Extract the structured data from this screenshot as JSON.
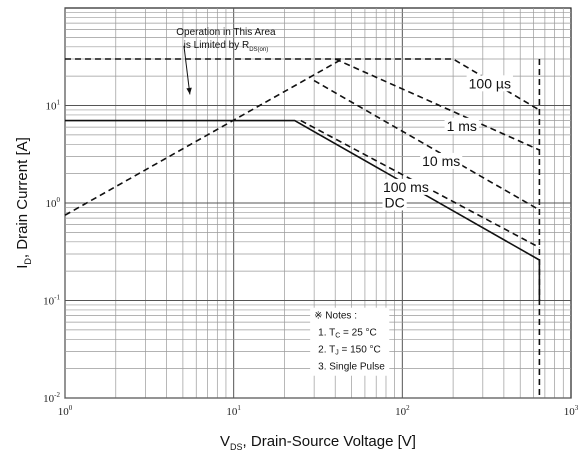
{
  "chart_data": {
    "type": "line",
    "x_scale": "log",
    "y_scale": "log",
    "xlim": [
      1,
      1000
    ],
    "ylim": [
      0.01,
      100
    ],
    "grid": true,
    "x_ticks": [
      {
        "value": 1,
        "base": "10",
        "exp": "0"
      },
      {
        "value": 10,
        "base": "10",
        "exp": "1"
      },
      {
        "value": 100,
        "base": "10",
        "exp": "2"
      },
      {
        "value": 1000,
        "base": "10",
        "exp": "3"
      }
    ],
    "y_ticks": [
      {
        "value": 0.01,
        "base": "10",
        "exp": "-2"
      },
      {
        "value": 0.1,
        "base": "10",
        "exp": "-1"
      },
      {
        "value": 1,
        "base": "10",
        "exp": "0"
      },
      {
        "value": 10,
        "base": "10",
        "exp": "1"
      }
    ],
    "xlabel": {
      "main": "V",
      "sub": "DS",
      "rest": ", Drain-Source Voltage [V]"
    },
    "ylabel": {
      "main": "I",
      "sub": "D",
      "rest": ", Drain Current [A]"
    },
    "series": [
      {
        "name": "100 µs",
        "dashed": true,
        "points": [
          [
            1,
            30
          ],
          [
            200,
            30
          ],
          [
            650,
            9
          ]
        ]
      },
      {
        "name": "1 ms",
        "dashed": true,
        "points": [
          [
            40,
            30
          ],
          [
            650,
            3.5
          ]
        ]
      },
      {
        "name": "10 ms",
        "dashed": true,
        "points": [
          [
            30,
            18
          ],
          [
            650,
            0.85
          ]
        ]
      },
      {
        "name": "100 ms",
        "dashed": true,
        "points": [
          [
            25,
            7
          ],
          [
            650,
            0.35
          ]
        ]
      },
      {
        "name": "DC",
        "dashed": false,
        "points": [
          [
            1,
            7
          ],
          [
            23,
            7
          ],
          [
            650,
            0.26
          ],
          [
            650,
            0.1
          ]
        ]
      },
      {
        "name": "",
        "dashed": true,
        "points": [
          [
            1,
            0.75
          ],
          [
            44,
            30
          ]
        ]
      },
      {
        "name": "",
        "dashed": true,
        "points": [
          [
            650,
            30
          ],
          [
            650,
            0.01
          ]
        ]
      }
    ],
    "curve_labels": [
      {
        "text": "100 µs",
        "x": 330,
        "y": 15
      },
      {
        "text": "1 ms",
        "x": 225,
        "y": 5.5
      },
      {
        "text": "10 ms",
        "x": 170,
        "y": 2.4
      },
      {
        "text": "100 ms",
        "x": 105,
        "y": 1.3
      },
      {
        "text": "DC",
        "x": 90,
        "y": 0.9
      }
    ],
    "annotation": {
      "line1": "Operation in This Area",
      "line2_main": "is Limited by R",
      "line2_sub": "DS(on)",
      "x": 9,
      "y": 45,
      "arrow_to": [
        5.5,
        13
      ]
    },
    "notes": {
      "title": "※ Notes :",
      "note1": {
        "prefix": "1. T",
        "sub": "C",
        "value": " = 25 °C"
      },
      "note2": {
        "prefix": "2. T",
        "sub": "J",
        "value": " = 150 °C"
      },
      "note3": "3. Single Pulse",
      "x": 30,
      "y": 0.065
    }
  }
}
